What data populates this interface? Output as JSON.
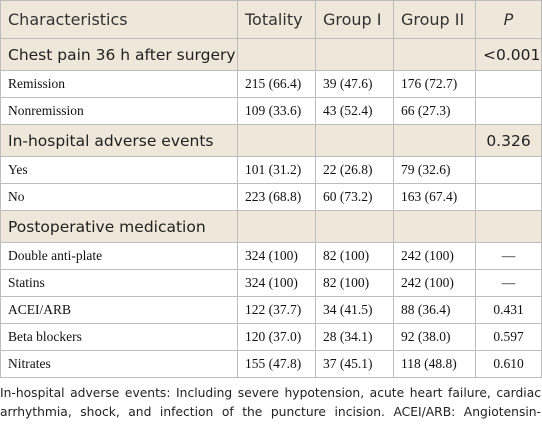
{
  "table": {
    "header": [
      "Characteristics",
      "Totality",
      "Group I",
      "Group II",
      "P"
    ],
    "sections": [
      {
        "title": "Chest pain 36 h after surgery",
        "p": "<0.001",
        "rows": [
          [
            "Remission",
            "215 (66.4)",
            "39 (47.6)",
            "176 (72.7)",
            ""
          ],
          [
            "Nonremission",
            "109 (33.6)",
            "43 (52.4)",
            "66 (27.3)",
            ""
          ]
        ]
      },
      {
        "title": "In-hospital adverse events",
        "p": "0.326",
        "rows": [
          [
            "Yes",
            "101 (31.2)",
            "22 (26.8)",
            "79 (32.6)",
            ""
          ],
          [
            "No",
            "223 (68.8)",
            "60 (73.2)",
            "163 (67.4)",
            ""
          ]
        ]
      },
      {
        "title": "Postoperative medication",
        "p": "",
        "rows": [
          [
            "Double anti-plate",
            "324 (100)",
            "82 (100)",
            "242 (100)",
            "—"
          ],
          [
            "Statins",
            "324 (100)",
            "82 (100)",
            "242 (100)",
            "—"
          ],
          [
            "ACEI/ARB",
            "122 (37.7)",
            "34 (41.5)",
            "88 (36.4)",
            "0.431"
          ],
          [
            "Beta blockers",
            "120 (37.0)",
            "28 (34.1)",
            "92 (38.0)",
            "0.597"
          ],
          [
            "Nitrates",
            "155 (47.8)",
            "37 (45.1)",
            "118 (48.8)",
            "0.610"
          ]
        ]
      }
    ]
  },
  "footnote": "In-hospital adverse events: Including severe hypotension, acute heart failure, cardiac arrhythmia, shock, and infection of the puncture incision. ACEI/ARB: Angiotensin-converting enzyme inhibitors and angiotensin II receptor antagonists."
}
